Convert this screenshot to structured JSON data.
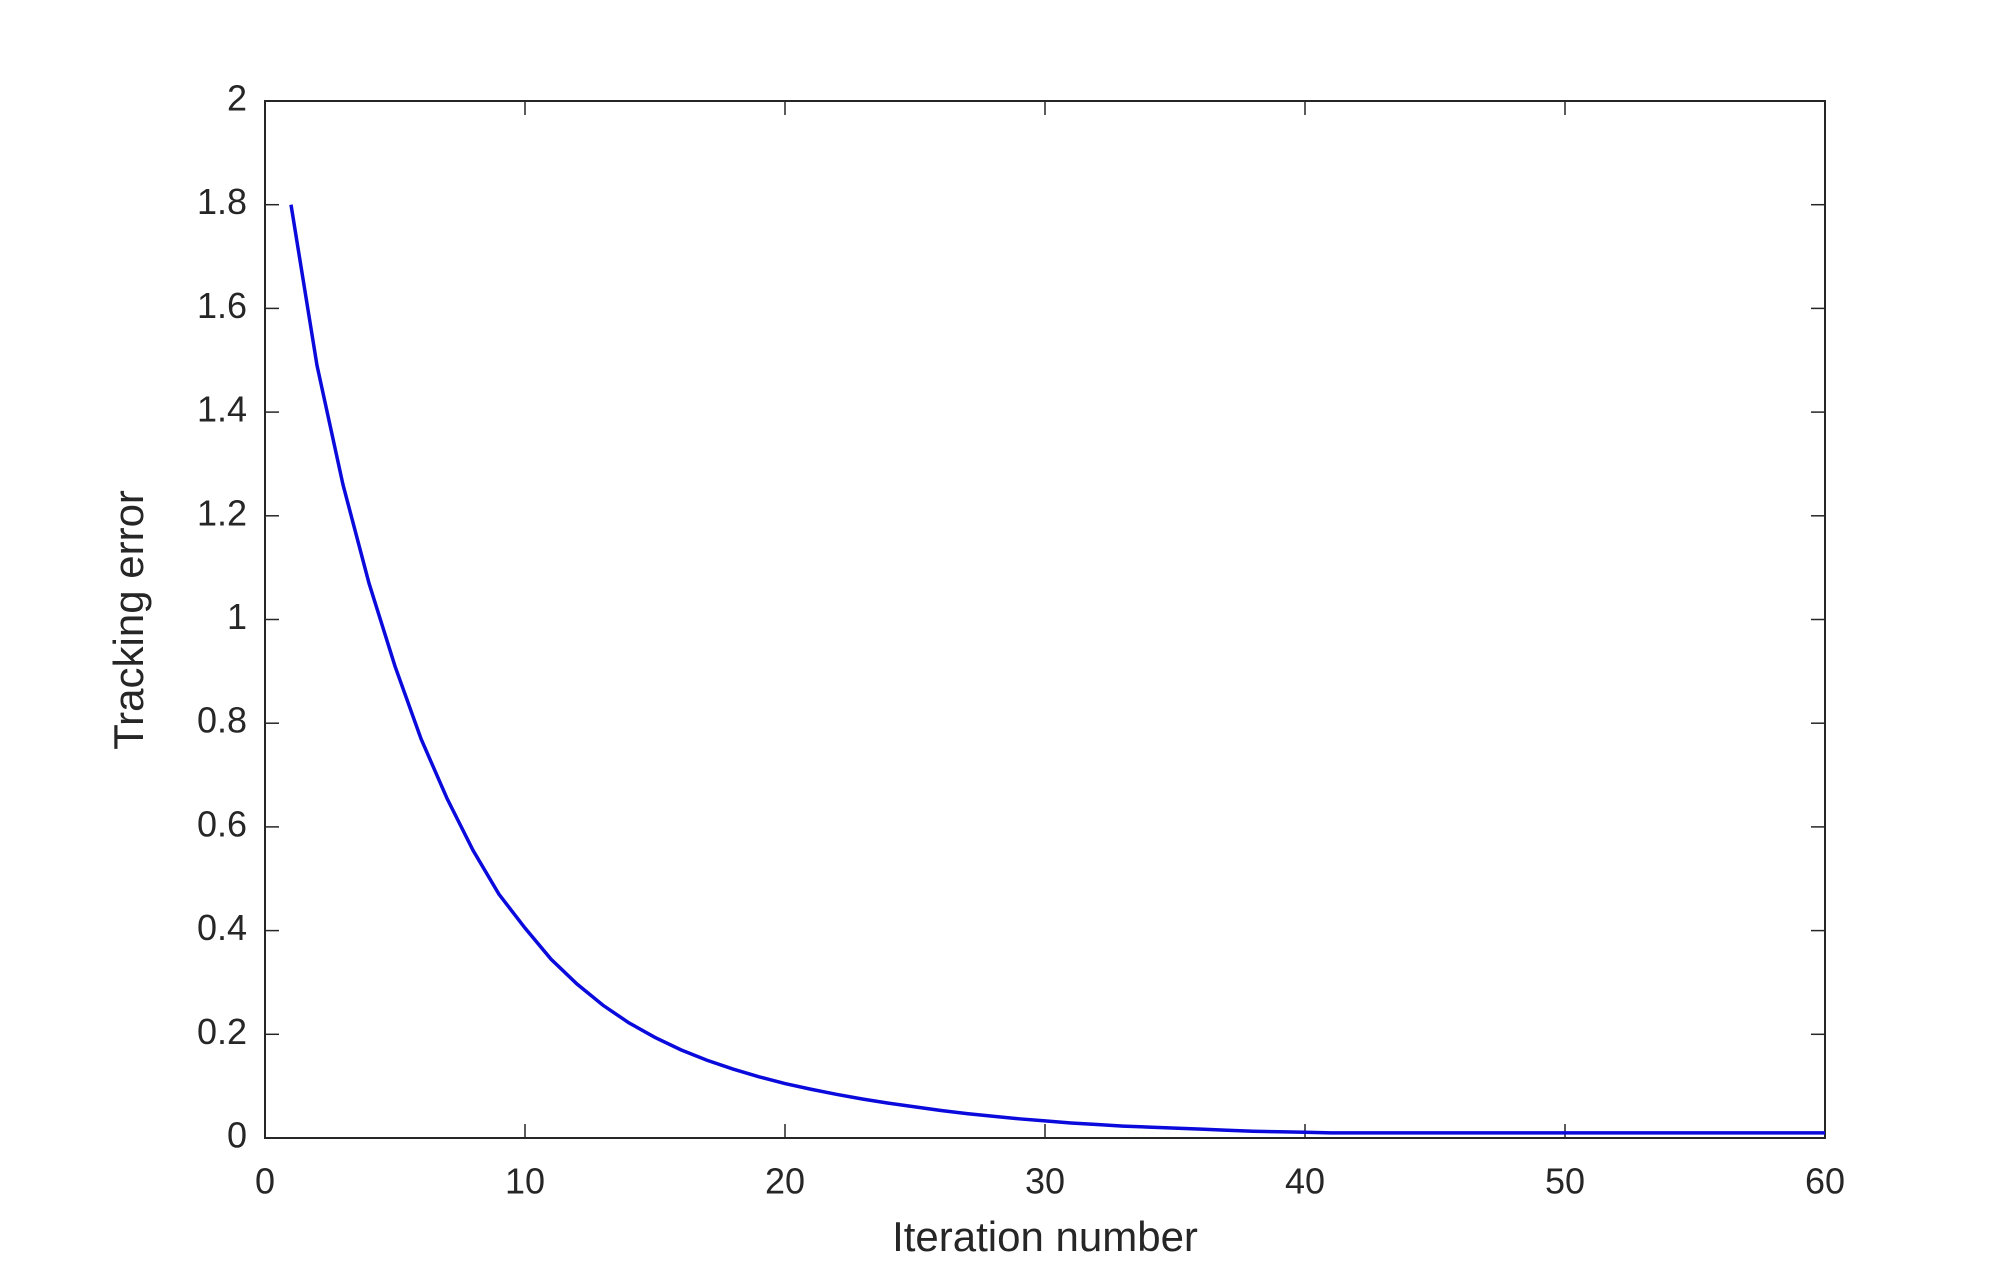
{
  "chart_data": {
    "type": "line",
    "xlabel": "Iteration number",
    "ylabel": "Tracking error",
    "x": [
      1,
      2,
      3,
      4,
      5,
      6,
      7,
      8,
      9,
      10,
      11,
      12,
      13,
      14,
      15,
      16,
      17,
      18,
      19,
      20,
      21,
      22,
      23,
      24,
      25,
      26,
      27,
      28,
      29,
      30,
      31,
      32,
      33,
      34,
      35,
      36,
      37,
      38,
      39,
      40,
      41,
      42,
      43,
      44,
      45,
      46,
      47,
      48,
      49,
      50,
      51,
      52,
      53,
      54,
      55,
      56,
      57,
      58,
      59,
      60
    ],
    "series": [
      {
        "color": "#0a0adc",
        "values": [
          1.8,
          1.49,
          1.26,
          1.07,
          0.91,
          0.77,
          0.655,
          0.555,
          0.47,
          0.405,
          0.345,
          0.297,
          0.256,
          0.222,
          0.194,
          0.17,
          0.15,
          0.133,
          0.118,
          0.105,
          0.094,
          0.084,
          0.075,
          0.067,
          0.06,
          0.053,
          0.047,
          0.042,
          0.037,
          0.033,
          0.029,
          0.026,
          0.023,
          0.021,
          0.019,
          0.017,
          0.015,
          0.013,
          0.012,
          0.011,
          0.01,
          0.01,
          0.01,
          0.01,
          0.01,
          0.01,
          0.01,
          0.01,
          0.01,
          0.01,
          0.01,
          0.01,
          0.01,
          0.01,
          0.01,
          0.01,
          0.01,
          0.01,
          0.01,
          0.01
        ]
      }
    ],
    "xlim": [
      0,
      60
    ],
    "xticks": [
      0,
      10,
      20,
      30,
      40,
      50,
      60
    ],
    "ylim": [
      0,
      2
    ],
    "yticks": [
      0,
      0.2,
      0.4,
      0.6,
      0.8,
      1,
      1.2,
      1.4,
      1.6,
      1.8,
      2
    ],
    "grid": false
  }
}
